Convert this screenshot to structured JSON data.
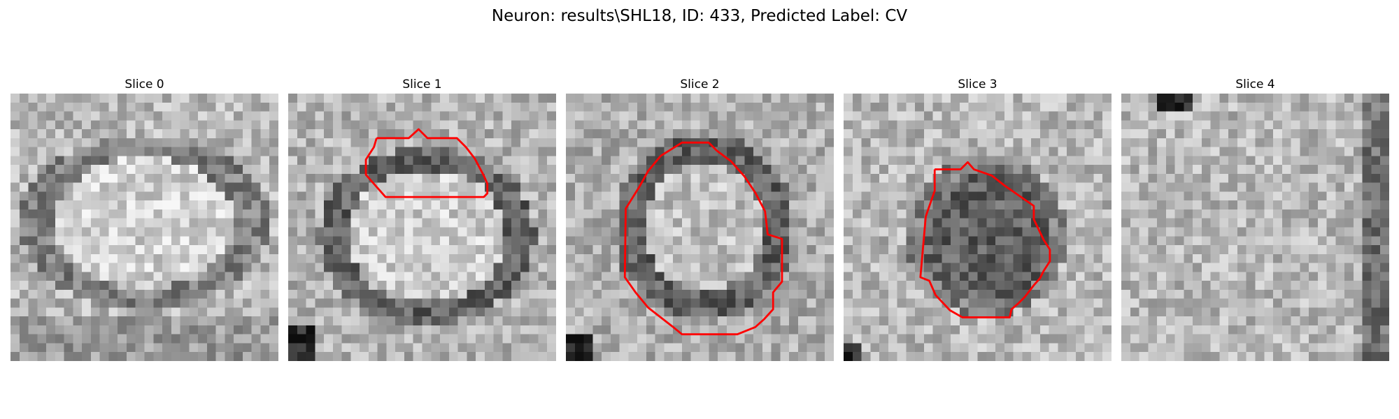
{
  "figure": {
    "title": "Neuron: results\\SHL18, ID: 433, Predicted Label: CV"
  },
  "panels": [
    {
      "title": "Slice 0",
      "has_contour": false
    },
    {
      "title": "Slice 1",
      "has_contour": true
    },
    {
      "title": "Slice 2",
      "has_contour": true
    },
    {
      "title": "Slice 3",
      "has_contour": true
    },
    {
      "title": "Slice 4",
      "has_contour": false
    }
  ],
  "colors": {
    "contour": "#ff0000",
    "background": "#ffffff"
  }
}
